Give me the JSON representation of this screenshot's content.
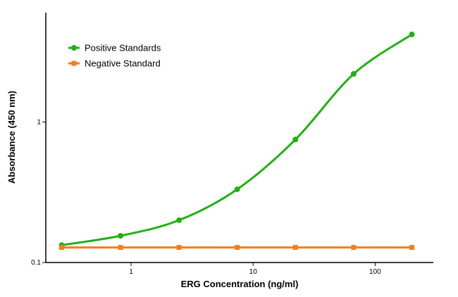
{
  "chart_data": {
    "type": "line",
    "xlabel": "ERG Concentration (ng/ml)",
    "ylabel": "Absorbance (450 nm)",
    "x_scale": "log",
    "y_scale": "log",
    "xlim": [
      0.2,
      300
    ],
    "ylim": [
      0.1,
      6
    ],
    "x_ticks": [
      1,
      10,
      100
    ],
    "x_tick_labels": [
      "1",
      "10",
      "100"
    ],
    "y_ticks": [
      0.1,
      1
    ],
    "y_tick_labels": [
      "0.1",
      "1"
    ],
    "grid": false,
    "legend_position": "top-left",
    "series": [
      {
        "name": "Positive Standards",
        "color": "#22b014",
        "marker": "circle",
        "x": [
          0.27,
          0.82,
          2.47,
          7.41,
          22.2,
          66.7,
          200
        ],
        "y": [
          0.133,
          0.155,
          0.2,
          0.332,
          0.75,
          2.2,
          4.2
        ]
      },
      {
        "name": "Negative Standard",
        "color": "#f0801a",
        "marker": "square",
        "x": [
          0.27,
          0.82,
          2.47,
          7.41,
          22.2,
          66.7,
          200
        ],
        "y": [
          0.128,
          0.128,
          0.128,
          0.128,
          0.128,
          0.128,
          0.128
        ]
      }
    ]
  }
}
